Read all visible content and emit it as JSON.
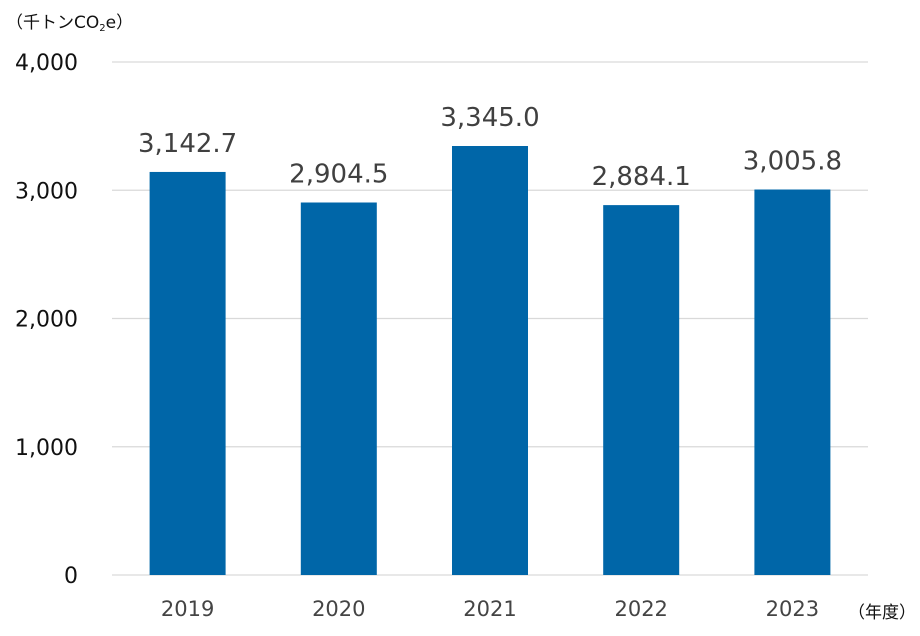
{
  "chart_data": {
    "type": "bar",
    "categories": [
      "2019",
      "2020",
      "2021",
      "2022",
      "2023"
    ],
    "values": [
      3142.7,
      2904.5,
      3345.0,
      2884.1,
      3005.8
    ],
    "data_labels": [
      "3,142.7",
      "2,904.5",
      "3,345.0",
      "2,884.1",
      "3,005.8"
    ],
    "ylabel_prefix": "（千トンCO",
    "ylabel_sub": "2",
    "ylabel_suffix": "e）",
    "xlabel": "（年度）",
    "ylim": [
      0,
      4000
    ],
    "yticks": [
      0,
      1000,
      2000,
      3000,
      4000
    ],
    "ytick_labels": [
      "0",
      "1,000",
      "2,000",
      "3,000",
      "4,000"
    ],
    "grid": true,
    "bar_color": "#0066A8",
    "grid_color": "#D9D9D9"
  }
}
